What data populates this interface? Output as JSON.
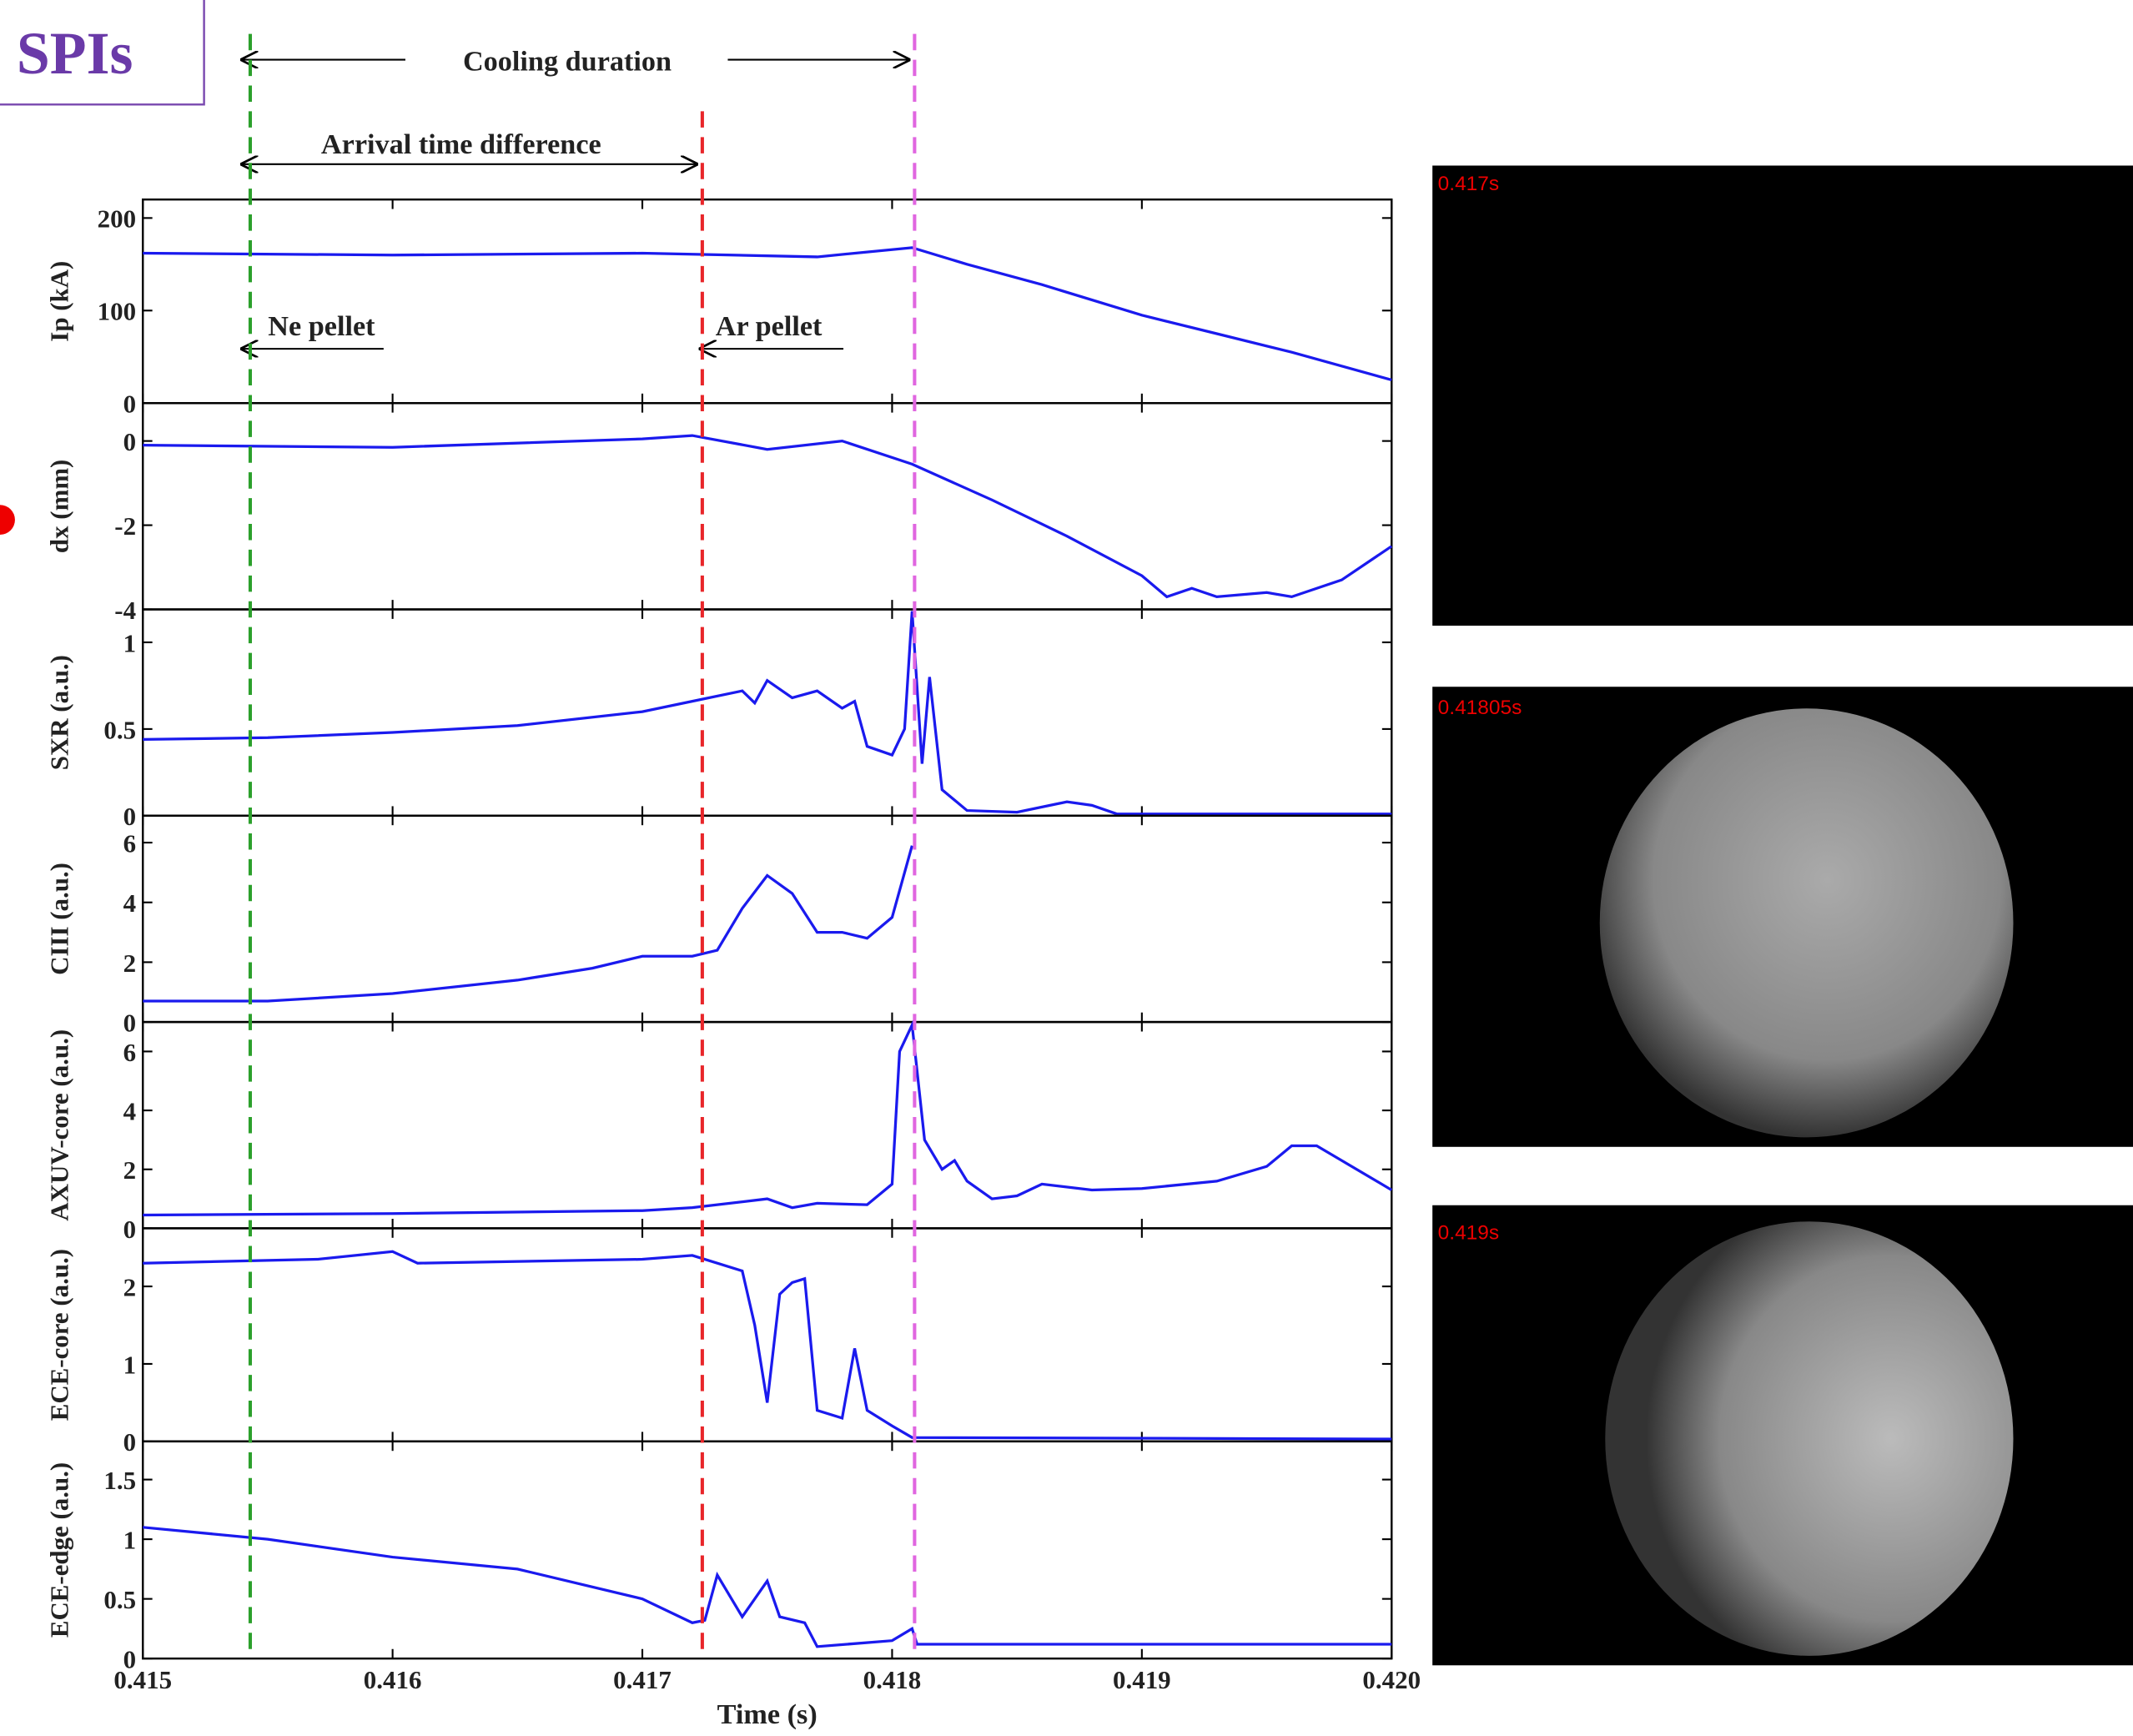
{
  "badge": "SPIs",
  "annotations": {
    "cooling": "Cooling duration",
    "arrival": "Arrival time difference",
    "ne": "Ne pellet",
    "ar": "Ar pellet",
    "markers": [
      {
        "x": 0.41543,
        "color": "#2ca02c"
      },
      {
        "x": 0.41724,
        "color": "#e8262a"
      },
      {
        "x": 0.41809,
        "color": "#e066e0"
      }
    ]
  },
  "images": [
    "0.417s",
    "0.41805s",
    "0.419s"
  ],
  "chart_data": [
    {
      "type": "line",
      "ylabel": "Ip (kA)",
      "color": "#1a1aee",
      "xlim": [
        0.415,
        0.42
      ],
      "ylim": [
        0,
        220
      ],
      "yticks": [
        0,
        100,
        200
      ],
      "x": [
        0.415,
        0.416,
        0.417,
        0.4177,
        0.41808,
        0.4183,
        0.4186,
        0.419,
        0.4193,
        0.4196,
        0.42
      ],
      "values": [
        162,
        160,
        162,
        158,
        168,
        150,
        128,
        95,
        75,
        55,
        25
      ]
    },
    {
      "type": "line",
      "ylabel": "dx (mm)",
      "color": "#1a1aee",
      "xlim": [
        0.415,
        0.42
      ],
      "ylim": [
        -4,
        0.9
      ],
      "yticks": [
        -4,
        -2,
        0
      ],
      "x": [
        0.415,
        0.416,
        0.417,
        0.4172,
        0.4175,
        0.4178,
        0.41808,
        0.4184,
        0.4187,
        0.419,
        0.4191,
        0.4192,
        0.4193,
        0.4195,
        0.4196,
        0.4198,
        0.42
      ],
      "values": [
        -0.1,
        -0.15,
        0.05,
        0.13,
        -0.2,
        0,
        -0.55,
        -1.4,
        -2.26,
        -3.2,
        -3.7,
        -3.5,
        -3.7,
        -3.6,
        -3.7,
        -3.3,
        -2.5
      ]
    },
    {
      "type": "line",
      "ylabel": "SXR (a.u.)",
      "color": "#1a1aee",
      "xlim": [
        0.415,
        0.42
      ],
      "ylim": [
        0,
        1.19
      ],
      "yticks": [
        0,
        0.5,
        1
      ],
      "x": [
        0.415,
        0.4155,
        0.416,
        0.4165,
        0.417,
        0.4172,
        0.4174,
        0.41745,
        0.4175,
        0.4176,
        0.4177,
        0.4178,
        0.41785,
        0.4179,
        0.418,
        0.41805,
        0.41808,
        0.41812,
        0.41815,
        0.4182,
        0.4183,
        0.4185,
        0.4187,
        0.4188,
        0.4189,
        0.42
      ],
      "values": [
        0.44,
        0.45,
        0.48,
        0.52,
        0.6,
        0.66,
        0.72,
        0.65,
        0.78,
        0.68,
        0.72,
        0.62,
        0.66,
        0.4,
        0.35,
        0.5,
        1.18,
        0.3,
        0.8,
        0.15,
        0.03,
        0.02,
        0.08,
        0.06,
        0.01,
        0.01
      ]
    },
    {
      "type": "line",
      "ylabel": "CIII (a.u.)",
      "color": "#1a1aee",
      "xlim": [
        0.415,
        0.42
      ],
      "ylim": [
        0,
        6.9
      ],
      "yticks": [
        0,
        2,
        4,
        6
      ],
      "x": [
        0.415,
        0.4155,
        0.416,
        0.4165,
        0.4168,
        0.417,
        0.4172,
        0.4173,
        0.4174,
        0.4175,
        0.4176,
        0.4177,
        0.4178,
        0.4179,
        0.418,
        0.41808
      ],
      "values": [
        0.7,
        0.7,
        0.95,
        1.4,
        1.8,
        2.2,
        2.2,
        2.4,
        3.8,
        4.9,
        4.3,
        3,
        3,
        2.8,
        3.5,
        5.9
      ]
    },
    {
      "type": "line",
      "ylabel": "AXUV-core (a.u.)",
      "color": "#1a1aee",
      "xlim": [
        0.415,
        0.42
      ],
      "ylim": [
        0,
        7
      ],
      "yticks": [
        0,
        2,
        4,
        6
      ],
      "x": [
        0.415,
        0.416,
        0.417,
        0.4172,
        0.4175,
        0.4176,
        0.4177,
        0.4179,
        0.418,
        0.41803,
        0.41808,
        0.41813,
        0.4182,
        0.41825,
        0.4183,
        0.4184,
        0.4185,
        0.4186,
        0.4188,
        0.419,
        0.4193,
        0.4195,
        0.4196,
        0.4197,
        0.4198,
        0.42
      ],
      "values": [
        0.45,
        0.5,
        0.6,
        0.7,
        1,
        0.7,
        0.85,
        0.8,
        1.5,
        6,
        6.9,
        3,
        2,
        2.3,
        1.6,
        1,
        1.1,
        1.5,
        1.3,
        1.35,
        1.6,
        2.1,
        2.8,
        2.8,
        2.3,
        1.3
      ]
    },
    {
      "type": "line",
      "ylabel": "ECE-core (a.u.)",
      "color": "#1a1aee",
      "xlim": [
        0.415,
        0.42
      ],
      "ylim": [
        0,
        2.75
      ],
      "yticks": [
        0,
        1,
        2
      ],
      "x": [
        0.415,
        0.4157,
        0.416,
        0.4161,
        0.417,
        0.4172,
        0.4173,
        0.4174,
        0.41745,
        0.4175,
        0.41755,
        0.4176,
        0.41765,
        0.4177,
        0.4178,
        0.41785,
        0.4179,
        0.418,
        0.41808,
        0.42
      ],
      "values": [
        2.3,
        2.35,
        2.45,
        2.3,
        2.35,
        2.4,
        2.3,
        2.2,
        1.5,
        0.5,
        1.9,
        2.05,
        2.1,
        0.4,
        0.3,
        1.2,
        0.4,
        0.2,
        0.05,
        0.03
      ]
    },
    {
      "type": "line",
      "ylabel": "ECE-edge (a.u.)",
      "xlabel": "Time (s)",
      "color": "#1a1aee",
      "xlim": [
        0.415,
        0.42
      ],
      "ylim": [
        0,
        1.82
      ],
      "yticks": [
        0,
        0.5,
        1,
        1.5
      ],
      "xticks": [
        0.415,
        0.416,
        0.417,
        0.418,
        0.419,
        {
          "value": 0.42,
          "label": "0.420"
        }
      ],
      "x": [
        0.415,
        0.4155,
        0.416,
        0.4165,
        0.417,
        0.4172,
        0.41725,
        0.4173,
        0.4174,
        0.4175,
        0.41755,
        0.41765,
        0.4177,
        0.418,
        0.41808,
        0.4181,
        0.42
      ],
      "values": [
        1.1,
        1,
        0.85,
        0.75,
        0.5,
        0.3,
        0.32,
        0.7,
        0.35,
        0.65,
        0.35,
        0.3,
        0.1,
        0.15,
        0.25,
        0.12,
        0.12
      ]
    }
  ]
}
